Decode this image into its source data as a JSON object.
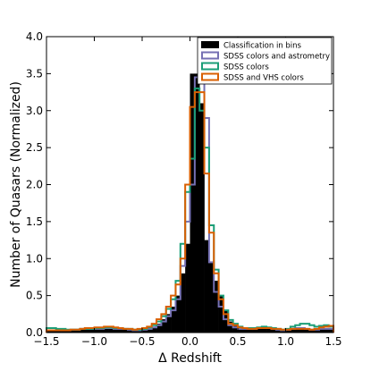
{
  "chart_data": {
    "type": "histogram",
    "xlabel": "Δ Redshift",
    "ylabel": "Number of Quasars (Normalized)",
    "xlim": [
      -1.5,
      1.5
    ],
    "ylim": [
      0.0,
      4.0
    ],
    "xticks": [
      -1.5,
      -1.0,
      -0.5,
      0.0,
      0.5,
      1.0,
      1.5
    ],
    "xtick_labels": [
      "−1.5",
      "−1.0",
      "−0.5",
      "0.0",
      "0.5",
      "1.0",
      "1.5"
    ],
    "yticks": [
      0.0,
      0.5,
      1.0,
      1.5,
      2.0,
      2.5,
      3.0,
      3.5,
      4.0
    ],
    "ytick_labels": [
      "0.0",
      "0.5",
      "1.0",
      "1.5",
      "2.0",
      "2.5",
      "3.0",
      "3.5",
      "4.0"
    ],
    "grid": false,
    "legend_position": "top-right",
    "bin_width": 0.05,
    "bin_start": -1.5,
    "series": [
      {
        "name": "Classification in bins",
        "style": "filled",
        "color": "#000000",
        "values": [
          0.03,
          0.03,
          0.03,
          0.03,
          0.03,
          0.03,
          0.03,
          0.04,
          0.04,
          0.04,
          0.05,
          0.05,
          0.06,
          0.06,
          0.05,
          0.05,
          0.05,
          0.04,
          0.03,
          0.03,
          0.04,
          0.06,
          0.08,
          0.12,
          0.18,
          0.25,
          0.35,
          0.5,
          0.8,
          1.2,
          3.5,
          3.5,
          3.1,
          1.25,
          0.95,
          0.7,
          0.5,
          0.3,
          0.15,
          0.1,
          0.06,
          0.05,
          0.05,
          0.05,
          0.06,
          0.07,
          0.06,
          0.05,
          0.04,
          0.03,
          0.04,
          0.05,
          0.06,
          0.06,
          0.05,
          0.04,
          0.04,
          0.05,
          0.05,
          0.05
        ]
      },
      {
        "name": "SDSS colors and astrometry",
        "style": "step",
        "color": "#7570b3",
        "values": [
          0.03,
          0.03,
          0.03,
          0.03,
          0.03,
          0.04,
          0.04,
          0.05,
          0.05,
          0.05,
          0.05,
          0.05,
          0.06,
          0.06,
          0.05,
          0.05,
          0.05,
          0.04,
          0.03,
          0.03,
          0.04,
          0.05,
          0.07,
          0.1,
          0.15,
          0.22,
          0.3,
          0.45,
          0.9,
          1.5,
          2.0,
          3.45,
          3.6,
          2.9,
          0.95,
          0.55,
          0.35,
          0.18,
          0.1,
          0.07,
          0.05,
          0.05,
          0.05,
          0.05,
          0.06,
          0.07,
          0.06,
          0.05,
          0.04,
          0.03,
          0.04,
          0.05,
          0.06,
          0.06,
          0.05,
          0.04,
          0.04,
          0.05,
          0.05,
          0.05
        ]
      },
      {
        "name": "SDSS colors",
        "style": "step",
        "color": "#1b9e77",
        "values": [
          0.06,
          0.06,
          0.05,
          0.05,
          0.04,
          0.04,
          0.04,
          0.05,
          0.05,
          0.05,
          0.06,
          0.06,
          0.07,
          0.07,
          0.06,
          0.06,
          0.05,
          0.05,
          0.04,
          0.04,
          0.05,
          0.07,
          0.1,
          0.15,
          0.22,
          0.32,
          0.45,
          0.7,
          1.2,
          1.9,
          2.35,
          3.3,
          3.0,
          2.5,
          1.45,
          0.85,
          0.5,
          0.3,
          0.17,
          0.12,
          0.08,
          0.06,
          0.06,
          0.06,
          0.07,
          0.08,
          0.07,
          0.06,
          0.05,
          0.04,
          0.05,
          0.08,
          0.1,
          0.12,
          0.12,
          0.1,
          0.08,
          0.09,
          0.1,
          0.08
        ]
      },
      {
        "name": "SDSS and VHS colors",
        "style": "step",
        "color": "#d95f02",
        "values": [
          0.03,
          0.03,
          0.03,
          0.03,
          0.03,
          0.04,
          0.04,
          0.05,
          0.06,
          0.06,
          0.07,
          0.07,
          0.08,
          0.08,
          0.07,
          0.06,
          0.05,
          0.05,
          0.04,
          0.05,
          0.06,
          0.08,
          0.12,
          0.18,
          0.25,
          0.35,
          0.5,
          0.65,
          1.0,
          2.0,
          3.05,
          3.25,
          3.25,
          2.15,
          1.35,
          0.8,
          0.45,
          0.25,
          0.12,
          0.1,
          0.07,
          0.06,
          0.05,
          0.05,
          0.06,
          0.06,
          0.06,
          0.05,
          0.05,
          0.04,
          0.04,
          0.05,
          0.05,
          0.05,
          0.05,
          0.04,
          0.05,
          0.07,
          0.08,
          0.09
        ]
      }
    ]
  }
}
